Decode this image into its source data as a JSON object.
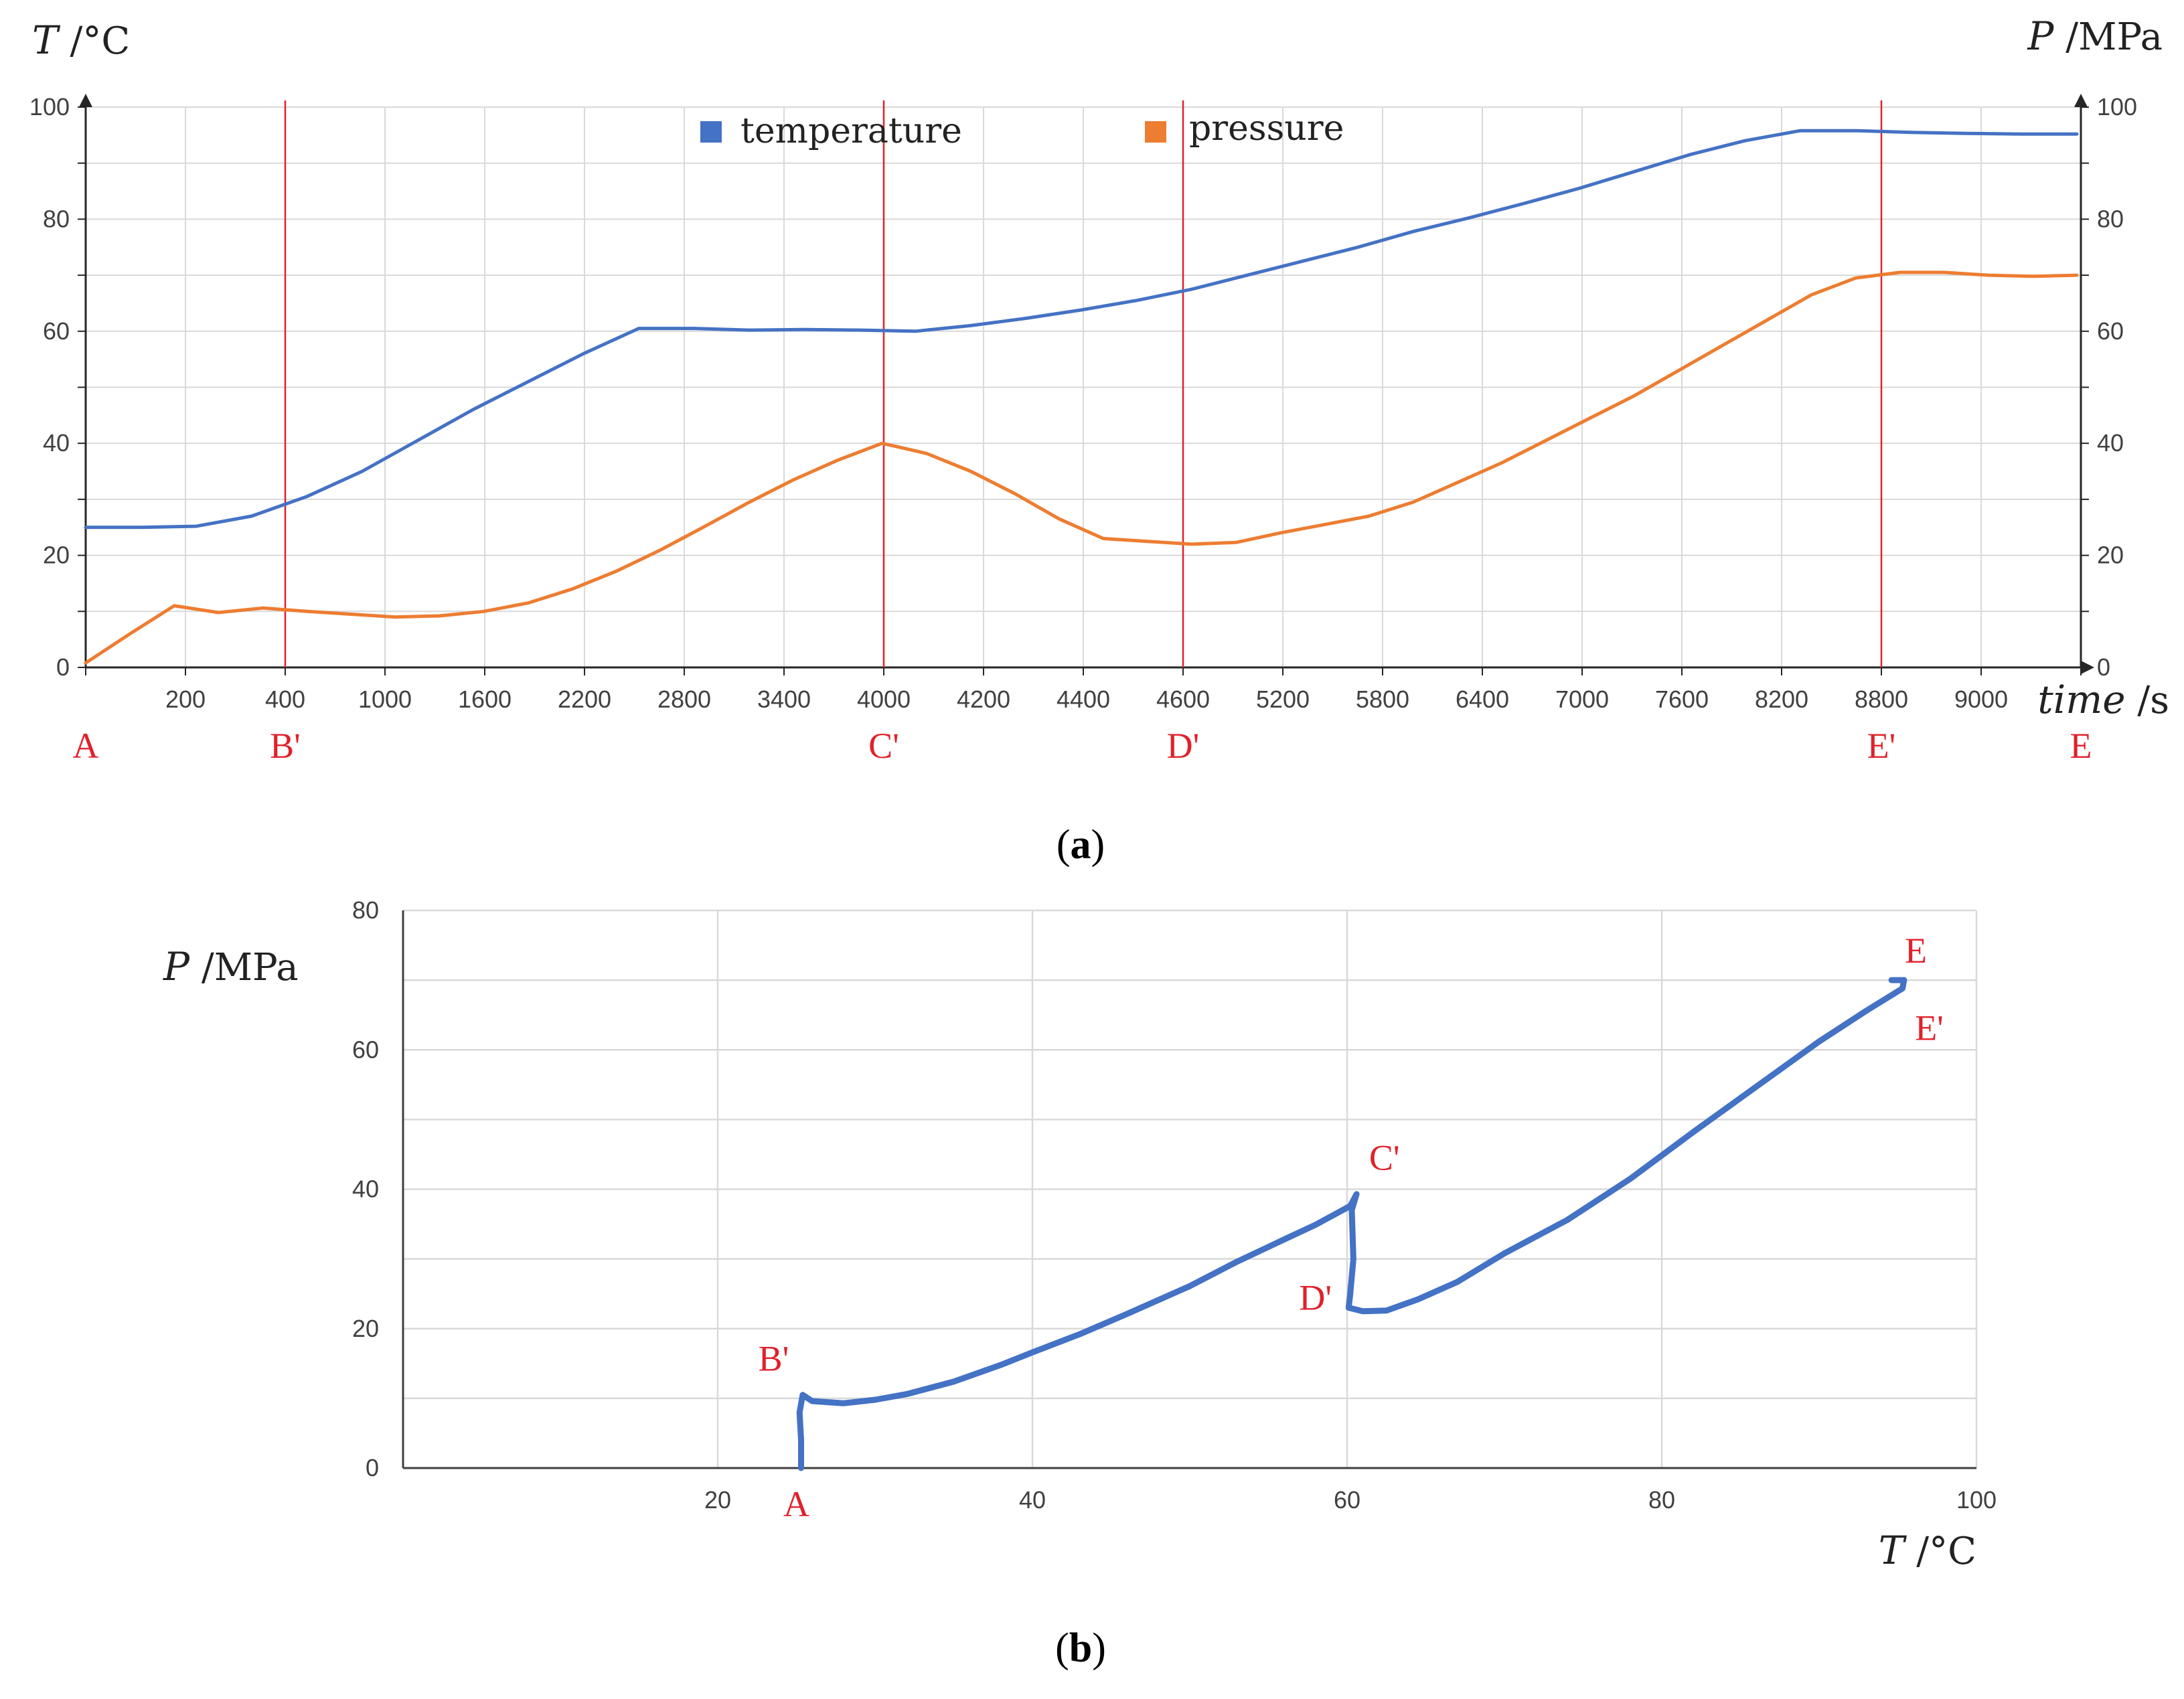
{
  "colors": {
    "temperature": "#4472c4",
    "pressure": "#ed7d31",
    "marker": "#e0212b",
    "grid": "#d9d9d9",
    "axis": "#262626"
  },
  "chart_data": [
    {
      "type": "line",
      "panel": "a",
      "caption": "a",
      "ylabel_left": {
        "symbol": "T",
        "unit": " /°C"
      },
      "ylabel_right": {
        "symbol": "P",
        "unit": " /MPa"
      },
      "xlabel": {
        "symbol": "time",
        "unit": " /s"
      },
      "ylim_left": [
        0,
        100
      ],
      "ylim_right": [
        0,
        100
      ],
      "ticks_left": [
        "0",
        "20",
        "40",
        "60",
        "80",
        "100"
      ],
      "ticks_right": [
        "0",
        "20",
        "40",
        "60",
        "80",
        "100"
      ],
      "x_tick_labels": [
        "200",
        "400",
        "1000",
        "1600",
        "2200",
        "2800",
        "3400",
        "4000",
        "4200",
        "4400",
        "4600",
        "5200",
        "5800",
        "6400",
        "7000",
        "7600",
        "8200",
        "8800",
        "9000"
      ],
      "x_grid_count": 20,
      "legend": [
        "temperature",
        "pressure"
      ],
      "markers": [
        {
          "label": "A",
          "index": 0,
          "line": false
        },
        {
          "label": "B'",
          "index": 2,
          "line": true
        },
        {
          "label": "C'",
          "index": 8,
          "line": true
        },
        {
          "label": "D'",
          "index": 11,
          "line": true
        },
        {
          "label": "E'",
          "index": 18,
          "line": true
        },
        {
          "label": "E",
          "index": 20,
          "line": false
        }
      ],
      "series": [
        {
          "name": "temperature",
          "points": [
            [
              0,
              25
            ],
            [
              1,
              25
            ],
            [
              2,
              25.2
            ],
            [
              3,
              27
            ],
            [
              4,
              30.5
            ],
            [
              5,
              35
            ],
            [
              6,
              40.5
            ],
            [
              7,
              46
            ],
            [
              8,
              51
            ],
            [
              9,
              56
            ],
            [
              10,
              60.5
            ],
            [
              11,
              60.5
            ],
            [
              12,
              60.2
            ],
            [
              13,
              60.3
            ],
            [
              14,
              60.2
            ],
            [
              15,
              60
            ],
            [
              16,
              61
            ],
            [
              17,
              62.3
            ],
            [
              18,
              63.8
            ],
            [
              19,
              65.5
            ],
            [
              20,
              67.5
            ],
            [
              21,
              70
            ],
            [
              22,
              72.5
            ],
            [
              23,
              75
            ],
            [
              24,
              77.8
            ],
            [
              25,
              80.2
            ],
            [
              26,
              82.8
            ],
            [
              27,
              85.5
            ],
            [
              28,
              88.5
            ],
            [
              29,
              91.5
            ],
            [
              30,
              94
            ],
            [
              31,
              95.8
            ],
            [
              32,
              95.8
            ],
            [
              33,
              95.5
            ],
            [
              34,
              95.3
            ],
            [
              35,
              95.2
            ],
            [
              36,
              95.2
            ]
          ]
        },
        {
          "name": "pressure",
          "points": [
            [
              0,
              0.8
            ],
            [
              1,
              6
            ],
            [
              2,
              11
            ],
            [
              3,
              9.8
            ],
            [
              4,
              10.6
            ],
            [
              5,
              10
            ],
            [
              6,
              9.5
            ],
            [
              7,
              9
            ],
            [
              8,
              9.2
            ],
            [
              9,
              10
            ],
            [
              10,
              11.5
            ],
            [
              11,
              14
            ],
            [
              12,
              17.2
            ],
            [
              13,
              21
            ],
            [
              14,
              25.2
            ],
            [
              15,
              29.5
            ],
            [
              16,
              33.5
            ],
            [
              17,
              37
            ],
            [
              18,
              40
            ],
            [
              19,
              38.2
            ],
            [
              20,
              35
            ],
            [
              21,
              31
            ],
            [
              22,
              26.5
            ],
            [
              23,
              23
            ],
            [
              24,
              22.5
            ],
            [
              25,
              22
            ],
            [
              26,
              22.3
            ],
            [
              27,
              24
            ],
            [
              28,
              25.5
            ],
            [
              29,
              27
            ],
            [
              30,
              29.5
            ],
            [
              31,
              33
            ],
            [
              32,
              36.5
            ],
            [
              33,
              40.5
            ],
            [
              34,
              44.5
            ],
            [
              35,
              48.5
            ],
            [
              36,
              53
            ],
            [
              37,
              57.5
            ],
            [
              38,
              62
            ],
            [
              39,
              66.5
            ],
            [
              40,
              69.5
            ],
            [
              41,
              70.5
            ],
            [
              42,
              70.5
            ],
            [
              43,
              70
            ],
            [
              44,
              69.8
            ],
            [
              45,
              70
            ]
          ]
        }
      ]
    },
    {
      "type": "line",
      "panel": "b",
      "caption": "b",
      "xlabel": {
        "symbol": "T",
        "unit": " /°C"
      },
      "ylabel": {
        "symbol": "P",
        "unit": " /MPa"
      },
      "xlim": [
        0,
        100
      ],
      "ylim": [
        0,
        80
      ],
      "x_tick_labels": [
        "20",
        "40",
        "60",
        "80",
        "100"
      ],
      "y_tick_labels": [
        "0",
        "20",
        "40",
        "60",
        "80"
      ],
      "markers": [
        {
          "label": "A",
          "x": 25,
          "y": 0
        },
        {
          "label": "B'",
          "x": 25,
          "y": 10.5
        },
        {
          "label": "C'",
          "x": 60.5,
          "y": 39.5
        },
        {
          "label": "D'",
          "x": 60.2,
          "y": 22.5
        },
        {
          "label": "E'",
          "x": 95.3,
          "y": 68.5
        },
        {
          "label": "E",
          "x": 95.3,
          "y": 70
        }
      ],
      "series": [
        {
          "name": "P vs T",
          "points": [
            [
              25.3,
              0
            ],
            [
              25.3,
              4
            ],
            [
              25.2,
              8
            ],
            [
              25.4,
              10.5
            ],
            [
              26,
              9.6
            ],
            [
              28,
              9.3
            ],
            [
              30,
              9.8
            ],
            [
              32,
              10.6
            ],
            [
              35,
              12.4
            ],
            [
              38,
              14.8
            ],
            [
              40,
              16.6
            ],
            [
              43,
              19.2
            ],
            [
              46,
              22.1
            ],
            [
              50,
              26.1
            ],
            [
              53,
              29.6
            ],
            [
              56,
              32.8
            ],
            [
              58,
              34.9
            ],
            [
              60.2,
              37.6
            ],
            [
              60.6,
              39.3
            ],
            [
              60.3,
              37
            ],
            [
              60.4,
              30
            ],
            [
              60.2,
              25
            ],
            [
              60.1,
              23
            ],
            [
              61,
              22.5
            ],
            [
              62.5,
              22.6
            ],
            [
              64.5,
              24.2
            ],
            [
              67,
              26.7
            ],
            [
              70,
              30.8
            ],
            [
              74,
              35.6
            ],
            [
              78,
              41.5
            ],
            [
              82,
              48.2
            ],
            [
              86,
              54.7
            ],
            [
              90,
              61.2
            ],
            [
              93,
              65.6
            ],
            [
              95.3,
              68.8
            ],
            [
              95.4,
              70
            ],
            [
              94.6,
              70
            ]
          ]
        }
      ]
    }
  ]
}
